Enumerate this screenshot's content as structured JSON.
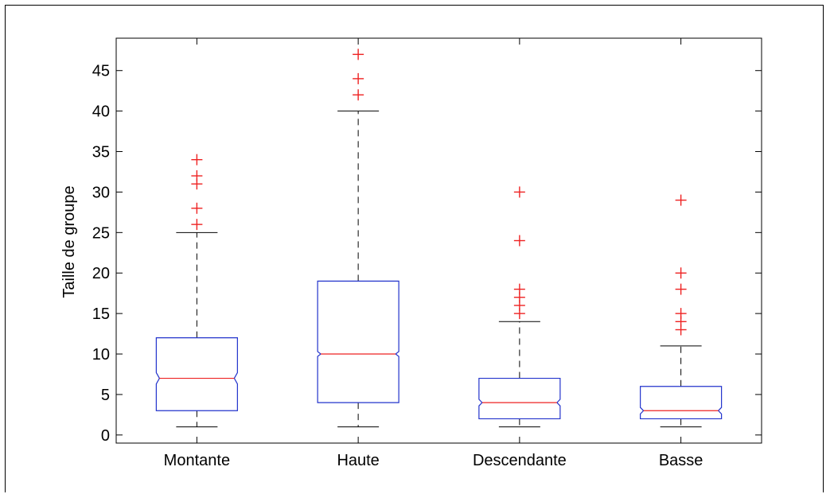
{
  "chart_data": {
    "type": "boxplot",
    "notched": true,
    "title": "",
    "xlabel": "",
    "ylabel": "Taille de groupe",
    "ylim": [
      -1,
      49
    ],
    "yticks": [
      0,
      5,
      10,
      15,
      20,
      25,
      30,
      35,
      40,
      45
    ],
    "grid": false,
    "categories": [
      "Montante",
      "Haute",
      "Descendante",
      "Basse"
    ],
    "boxes": [
      {
        "category": "Montante",
        "whisker_low": 1,
        "q1": 3,
        "median": 7,
        "q3": 12,
        "whisker_high": 25,
        "notch_low": 6.3,
        "notch_high": 7.7,
        "outliers": [
          26,
          28,
          31,
          32,
          34
        ]
      },
      {
        "category": "Haute",
        "whisker_low": 1,
        "q1": 4,
        "median": 10,
        "q3": 19,
        "whisker_high": 40,
        "notch_low": 9.7,
        "notch_high": 10.3,
        "outliers": [
          42,
          44,
          47
        ]
      },
      {
        "category": "Descendante",
        "whisker_low": 1,
        "q1": 2,
        "median": 4,
        "q3": 7,
        "whisker_high": 14,
        "notch_low": 3.6,
        "notch_high": 4.4,
        "outliers": [
          15,
          16,
          17,
          18,
          24,
          30
        ]
      },
      {
        "category": "Basse",
        "whisker_low": 1,
        "q1": 2,
        "median": 3,
        "q3": 6,
        "whisker_high": 11,
        "notch_low": 2.6,
        "notch_high": 3.4,
        "outliers": [
          13,
          14,
          15,
          18,
          20,
          29
        ]
      }
    ],
    "colors": {
      "box": "#2233cc",
      "median": "#ee2222",
      "outlier": "#ee2222",
      "whisker": "#000000",
      "axes": "#000000"
    }
  }
}
